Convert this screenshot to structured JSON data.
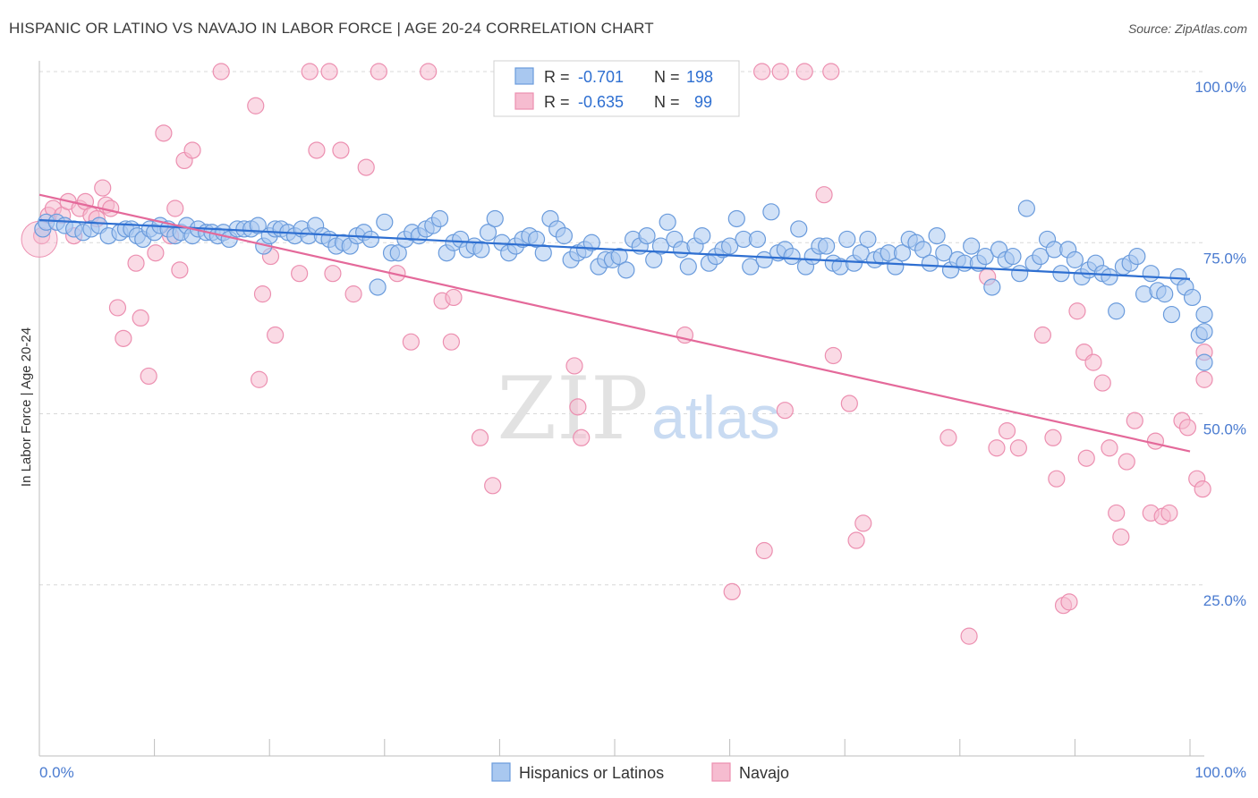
{
  "title": "HISPANIC OR LATINO VS NAVAJO IN LABOR FORCE | AGE 20-24 CORRELATION CHART",
  "source": "Source: ZipAtlas.com",
  "watermark": {
    "zip": "ZIP",
    "atlas": "atlas"
  },
  "colors": {
    "blue_fill": "#a9c8f0",
    "blue_stroke": "#6a9bdc",
    "blue_line": "#2e6fd1",
    "pink_fill": "#f6bcd0",
    "pink_stroke": "#ec8fb0",
    "pink_line": "#e4699a",
    "accent_text": "#4a7bd0",
    "grid": "#d8d8d8"
  },
  "legend": {
    "rows": [
      {
        "r_label": "R =",
        "r_value": "-0.701",
        "n_label": "N =",
        "n_value": "198",
        "color": "blue"
      },
      {
        "r_label": "R =",
        "r_value": "-0.635",
        "n_label": "N =",
        "n_value": "99",
        "color": "pink"
      }
    ]
  },
  "bottom_legend": [
    "Hispanics or Latinos",
    "Navajo"
  ],
  "chart_data": {
    "type": "scatter",
    "title": "HISPANIC OR LATINO VS NAVAJO IN LABOR FORCE | AGE 20-24 CORRELATION CHART",
    "xlabel": "",
    "ylabel": "In Labor Force | Age 20-24",
    "xlim": [
      0,
      100
    ],
    "ylim": [
      0,
      102
    ],
    "x_tick_labels": [
      "0.0%",
      "100.0%"
    ],
    "y_ticks": [
      25,
      50,
      75,
      100
    ],
    "y_tick_labels": [
      "25.0%",
      "50.0%",
      "75.0%",
      "100.0%"
    ],
    "grid": true,
    "legend_position": "top-center",
    "series": [
      {
        "name": "Hispanics or Latinos",
        "color": "blue",
        "trend": {
          "x": [
            0,
            100
          ],
          "y": [
            78.3,
            69.7
          ]
        },
        "points": [
          [
            0.3,
            77
          ],
          [
            0.6,
            78
          ],
          [
            1.5,
            78
          ],
          [
            2.2,
            77.5
          ],
          [
            3,
            77
          ],
          [
            3.8,
            76.5
          ],
          [
            4.5,
            77
          ],
          [
            5.2,
            77.5
          ],
          [
            6,
            76
          ],
          [
            7,
            76.5
          ],
          [
            7.5,
            77
          ],
          [
            8,
            77
          ],
          [
            8.5,
            76
          ],
          [
            9,
            75.5
          ],
          [
            9.6,
            77
          ],
          [
            10,
            76.5
          ],
          [
            10.5,
            77.5
          ],
          [
            11.2,
            77
          ],
          [
            11.8,
            76
          ],
          [
            12.3,
            76.5
          ],
          [
            12.8,
            77.5
          ],
          [
            13.3,
            76
          ],
          [
            13.8,
            77
          ],
          [
            14.5,
            76.5
          ],
          [
            15,
            76.5
          ],
          [
            15.5,
            76
          ],
          [
            16,
            76.5
          ],
          [
            16.5,
            75.5
          ],
          [
            17.2,
            77
          ],
          [
            17.8,
            77
          ],
          [
            18.4,
            77
          ],
          [
            19,
            77.5
          ],
          [
            19.5,
            74.5
          ],
          [
            20,
            76
          ],
          [
            20.5,
            77
          ],
          [
            21,
            77
          ],
          [
            21.6,
            76.5
          ],
          [
            22.2,
            76
          ],
          [
            22.8,
            77
          ],
          [
            23.4,
            76
          ],
          [
            24,
            77.5
          ],
          [
            24.6,
            76
          ],
          [
            25.2,
            75.5
          ],
          [
            25.8,
            74.5
          ],
          [
            26.4,
            75
          ],
          [
            27,
            74.5
          ],
          [
            27.6,
            76
          ],
          [
            28.2,
            76.5
          ],
          [
            28.8,
            75.5
          ],
          [
            29.4,
            68.5
          ],
          [
            30,
            78
          ],
          [
            30.6,
            73.5
          ],
          [
            31.2,
            73.5
          ],
          [
            31.8,
            75.5
          ],
          [
            32.4,
            76.5
          ],
          [
            33,
            76
          ],
          [
            33.6,
            77
          ],
          [
            34.2,
            77.5
          ],
          [
            34.8,
            78.5
          ],
          [
            35.4,
            73.5
          ],
          [
            36,
            75
          ],
          [
            36.6,
            75.5
          ],
          [
            37.2,
            74
          ],
          [
            37.8,
            74.5
          ],
          [
            38.4,
            74
          ],
          [
            39,
            76.5
          ],
          [
            39.6,
            78.5
          ],
          [
            40.2,
            75
          ],
          [
            40.8,
            73.5
          ],
          [
            41.4,
            74.5
          ],
          [
            42,
            75.5
          ],
          [
            42.6,
            76
          ],
          [
            43.2,
            75.5
          ],
          [
            43.8,
            73.5
          ],
          [
            44.4,
            78.5
          ],
          [
            45,
            77
          ],
          [
            45.6,
            76
          ],
          [
            46.2,
            72.5
          ],
          [
            46.8,
            73.5
          ],
          [
            47.4,
            74
          ],
          [
            48,
            75
          ],
          [
            48.6,
            71.5
          ],
          [
            49.2,
            72.5
          ],
          [
            49.8,
            72.5
          ],
          [
            50.4,
            73
          ],
          [
            51,
            71
          ],
          [
            51.6,
            75.5
          ],
          [
            52.2,
            74.5
          ],
          [
            52.8,
            76
          ],
          [
            53.4,
            72.5
          ],
          [
            54,
            74.5
          ],
          [
            54.6,
            78
          ],
          [
            55.2,
            75.5
          ],
          [
            55.8,
            74
          ],
          [
            56.4,
            71.5
          ],
          [
            57,
            74.5
          ],
          [
            57.6,
            76
          ],
          [
            58.2,
            72
          ],
          [
            58.8,
            73
          ],
          [
            59.4,
            74
          ],
          [
            60,
            74.5
          ],
          [
            60.6,
            78.5
          ],
          [
            61.2,
            75.5
          ],
          [
            61.8,
            71.5
          ],
          [
            62.4,
            75.5
          ],
          [
            63,
            72.5
          ],
          [
            63.6,
            79.5
          ],
          [
            64.2,
            73.5
          ],
          [
            64.8,
            74
          ],
          [
            65.4,
            73
          ],
          [
            66,
            77
          ],
          [
            66.6,
            71.5
          ],
          [
            67.2,
            73
          ],
          [
            67.8,
            74.5
          ],
          [
            68.4,
            74.5
          ],
          [
            69,
            72
          ],
          [
            69.6,
            71.5
          ],
          [
            70.2,
            75.5
          ],
          [
            70.8,
            72
          ],
          [
            71.4,
            73.5
          ],
          [
            72,
            75.5
          ],
          [
            72.6,
            72.5
          ],
          [
            73.2,
            73
          ],
          [
            73.8,
            73.5
          ],
          [
            74.4,
            71.5
          ],
          [
            75,
            73.5
          ],
          [
            75.6,
            75.5
          ],
          [
            76.2,
            75
          ],
          [
            76.8,
            74
          ],
          [
            77.4,
            72
          ],
          [
            78,
            76
          ],
          [
            78.6,
            73.5
          ],
          [
            79.2,
            71
          ],
          [
            79.8,
            72.5
          ],
          [
            80.4,
            72
          ],
          [
            81,
            74.5
          ],
          [
            81.6,
            72
          ],
          [
            82.2,
            73
          ],
          [
            82.8,
            68.5
          ],
          [
            83.4,
            74
          ],
          [
            84,
            72.5
          ],
          [
            84.6,
            73
          ],
          [
            85.2,
            70.5
          ],
          [
            85.8,
            80
          ],
          [
            86.4,
            72
          ],
          [
            87,
            73
          ],
          [
            87.6,
            75.5
          ],
          [
            88.2,
            74
          ],
          [
            88.8,
            70.5
          ],
          [
            89.4,
            74
          ],
          [
            90,
            72.5
          ],
          [
            90.6,
            70
          ],
          [
            91.2,
            71
          ],
          [
            91.8,
            72
          ],
          [
            92.4,
            70.5
          ],
          [
            93,
            70
          ],
          [
            93.6,
            65
          ],
          [
            94.2,
            71.5
          ],
          [
            94.8,
            72
          ],
          [
            95.4,
            73
          ],
          [
            96,
            67.5
          ],
          [
            96.6,
            70.5
          ],
          [
            97.2,
            68
          ],
          [
            97.8,
            67.5
          ],
          [
            98.4,
            64.5
          ],
          [
            99,
            70
          ],
          [
            99.6,
            68.5
          ],
          [
            100.2,
            67
          ],
          [
            100.8,
            61.5
          ],
          [
            101.4,
            62
          ],
          [
            101.9,
            57.5
          ],
          [
            102.3,
            64.5
          ]
        ]
      },
      {
        "name": "Navajo",
        "color": "pink",
        "trend": {
          "x": [
            0,
            100
          ],
          "y": [
            82,
            44.5
          ]
        },
        "points": [
          [
            0.2,
            76
          ],
          [
            0.8,
            79
          ],
          [
            1.2,
            80
          ],
          [
            2,
            79
          ],
          [
            2.5,
            81
          ],
          [
            3,
            76
          ],
          [
            3.5,
            80
          ],
          [
            4,
            81
          ],
          [
            4.5,
            79
          ],
          [
            5,
            78.5
          ],
          [
            5.5,
            83
          ],
          [
            5.8,
            80.5
          ],
          [
            6.2,
            80
          ],
          [
            6.8,
            65.5
          ],
          [
            7.3,
            61
          ],
          [
            8.4,
            72
          ],
          [
            8.8,
            64
          ],
          [
            9.5,
            55.5
          ],
          [
            10.1,
            73.5
          ],
          [
            10.8,
            91
          ],
          [
            11.4,
            76
          ],
          [
            11.8,
            80
          ],
          [
            12.2,
            71
          ],
          [
            12.6,
            87
          ],
          [
            13.3,
            88.5
          ],
          [
            15.8,
            100
          ],
          [
            18.8,
            95
          ],
          [
            19.1,
            55
          ],
          [
            19.4,
            67.5
          ],
          [
            20.1,
            73
          ],
          [
            20.5,
            61.5
          ],
          [
            22.6,
            70.5
          ],
          [
            23.5,
            100
          ],
          [
            24.1,
            88.5
          ],
          [
            25.2,
            100
          ],
          [
            25.5,
            70.5
          ],
          [
            26.2,
            88.5
          ],
          [
            27.3,
            67.5
          ],
          [
            28.4,
            86
          ],
          [
            29.5,
            100
          ],
          [
            31.1,
            70.5
          ],
          [
            32.3,
            60.5
          ],
          [
            33.8,
            100
          ],
          [
            35,
            66.5
          ],
          [
            35.8,
            60.5
          ],
          [
            36,
            67
          ],
          [
            38.3,
            46.5
          ],
          [
            39.4,
            39.5
          ],
          [
            46.5,
            57
          ],
          [
            46.8,
            51
          ],
          [
            47.1,
            46.5
          ],
          [
            56.1,
            61.5
          ],
          [
            60.2,
            24
          ],
          [
            62.8,
            100
          ],
          [
            63,
            30
          ],
          [
            64.4,
            100
          ],
          [
            64.8,
            50.5
          ],
          [
            66.5,
            100
          ],
          [
            68.2,
            82
          ],
          [
            68.8,
            100
          ],
          [
            69,
            58.5
          ],
          [
            70.4,
            51.5
          ],
          [
            71,
            31.5
          ],
          [
            71.6,
            34
          ],
          [
            79,
            46.5
          ],
          [
            80.8,
            17.5
          ],
          [
            82.4,
            70
          ],
          [
            83.2,
            45
          ],
          [
            84.1,
            47.5
          ],
          [
            85.1,
            45
          ],
          [
            87.2,
            61.5
          ],
          [
            88.1,
            46.5
          ],
          [
            88.4,
            40.5
          ],
          [
            89,
            22
          ],
          [
            89.5,
            22.5
          ],
          [
            90.2,
            65
          ],
          [
            90.8,
            59
          ],
          [
            91,
            43.5
          ],
          [
            91.6,
            57.5
          ],
          [
            92.4,
            54.5
          ],
          [
            93,
            45
          ],
          [
            93.6,
            35.5
          ],
          [
            94,
            32
          ],
          [
            94.5,
            43
          ],
          [
            95.2,
            49
          ],
          [
            96.6,
            35.5
          ],
          [
            97,
            46
          ],
          [
            97.6,
            35
          ],
          [
            98.2,
            35.5
          ],
          [
            99.3,
            49
          ],
          [
            99.8,
            48
          ],
          [
            100.6,
            40.5
          ],
          [
            101.1,
            39
          ],
          [
            101.6,
            59
          ],
          [
            102,
            55
          ]
        ]
      }
    ]
  }
}
